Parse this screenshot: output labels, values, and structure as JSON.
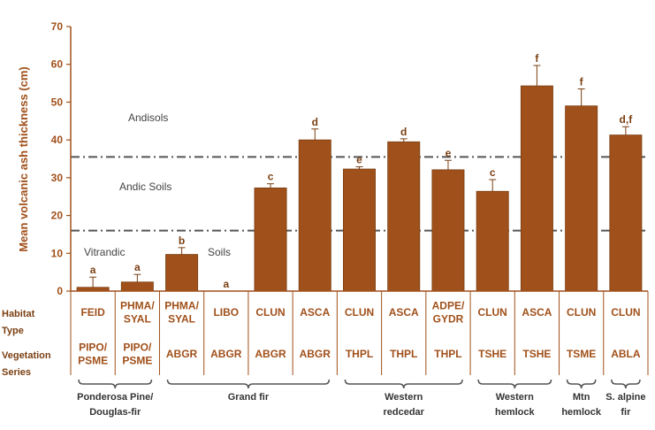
{
  "chart_data": {
    "type": "bar",
    "ylabel": "Mean volcanic ash thickness (cm)",
    "ylim": [
      0,
      70
    ],
    "yticks": [
      0,
      10,
      20,
      30,
      40,
      50,
      60,
      70
    ],
    "bar_color": "#a0501a",
    "bars": [
      {
        "habitat": "FEID",
        "series": "PIPO/ PSME",
        "value": 1.0,
        "error": 2.7,
        "sig": "a"
      },
      {
        "habitat": "PHMA/ SYAL",
        "series": "PIPO/ PSME",
        "value": 2.4,
        "error": 2.0,
        "sig": "a"
      },
      {
        "habitat": "PHMA/ SYAL",
        "series": "ABGR",
        "value": 9.7,
        "error": 1.8,
        "sig": "b"
      },
      {
        "habitat": "LIBO",
        "series": "ABGR",
        "value": 0,
        "error": 0,
        "sig": "a"
      },
      {
        "habitat": "CLUN",
        "series": "ABGR",
        "value": 27.3,
        "error": 1.1,
        "sig": "c"
      },
      {
        "habitat": "ASCA",
        "series": "ABGR",
        "value": 40.0,
        "error": 2.9,
        "sig": "d"
      },
      {
        "habitat": "CLUN",
        "series": "THPL",
        "value": 32.3,
        "error": 0.6,
        "sig": "e"
      },
      {
        "habitat": "ASCA",
        "series": "THPL",
        "value": 39.5,
        "error": 0.8,
        "sig": "d"
      },
      {
        "habitat": "ADPE/ GYDR",
        "series": "THPL",
        "value": 32.1,
        "error": 2.5,
        "sig": "e"
      },
      {
        "habitat": "CLUN",
        "series": "TSHE",
        "value": 26.4,
        "error": 3.1,
        "sig": "c"
      },
      {
        "habitat": "ASCA",
        "series": "TSHE",
        "value": 54.3,
        "error": 5.4,
        "sig": "f"
      },
      {
        "habitat": "CLUN",
        "series": "TSME",
        "value": 49.0,
        "error": 4.5,
        "sig": "f"
      },
      {
        "habitat": "CLUN",
        "series": "ABLA",
        "value": 41.3,
        "error": 2.2,
        "sig": "d,f"
      }
    ],
    "thresholds": [
      {
        "value": 35.5,
        "style": "dash-dot"
      },
      {
        "value": 16.0,
        "style": "dash-dot"
      }
    ],
    "zones": [
      {
        "label": "Andisols",
        "y": 45.5
      },
      {
        "label": "Andic Soils",
        "y": 27.5
      },
      {
        "label": "Vitrandic",
        "y": 10.0
      },
      {
        "label": "Soils",
        "y": 10.0
      }
    ],
    "row_labels": {
      "habitat": [
        "Habitat",
        "Type"
      ],
      "series": [
        "Vegetation",
        "Series"
      ]
    },
    "groups": [
      {
        "lines": [
          "Ponderosa Pine/",
          "Douglas-fir"
        ],
        "from": 0,
        "to": 1
      },
      {
        "lines": [
          "Grand fir"
        ],
        "from": 2,
        "to": 5
      },
      {
        "lines": [
          "Western",
          "redcedar"
        ],
        "from": 6,
        "to": 8
      },
      {
        "lines": [
          "Western",
          "hemlock"
        ],
        "from": 9,
        "to": 10
      },
      {
        "lines": [
          "Mtn",
          "hemlock"
        ],
        "from": 11,
        "to": 11
      },
      {
        "lines": [
          "S. alpine",
          "fir"
        ],
        "from": 12,
        "to": 12
      }
    ]
  }
}
